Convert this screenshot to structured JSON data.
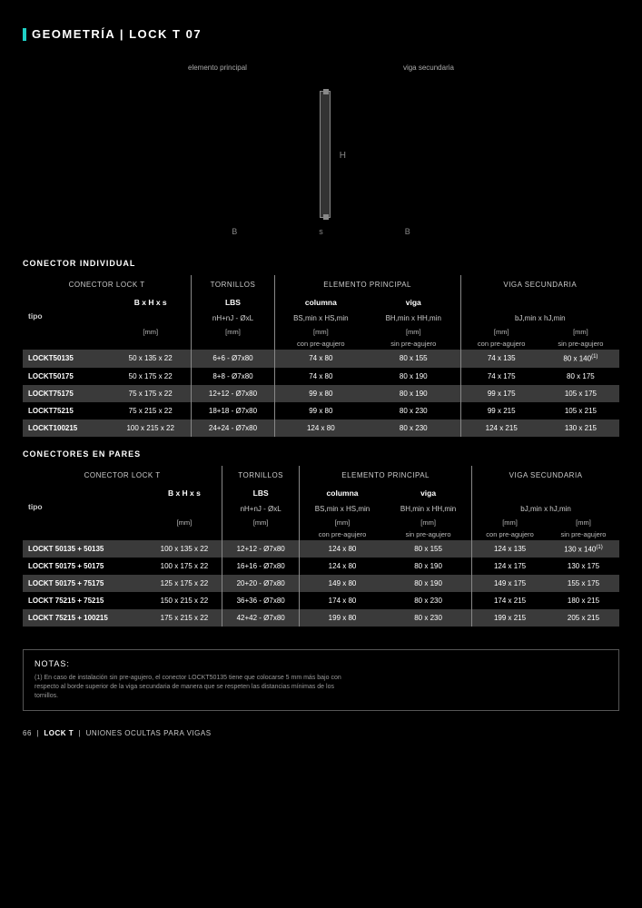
{
  "header": {
    "title": "GEOMETRÍA | LOCK T 07"
  },
  "diagram": {
    "left_label": "elemento\nprincipal",
    "right_label": "viga\nsecundaria",
    "H": "H",
    "B": "B",
    "s": "s"
  },
  "sec1": {
    "title": "CONECTOR INDIVIDUAL"
  },
  "sec2": {
    "title": "CONECTORES EN PARES"
  },
  "groups": {
    "g1": "CONECTOR LOCK T",
    "g2": "TORNILLOS",
    "g3": "ELEMENTO\nPRINCIPAL",
    "g4": "VIGA\nSECUNDARIA"
  },
  "sub": {
    "lbs": "LBS",
    "col": "columna",
    "viga": "viga",
    "tipo": "tipo",
    "bhs": "B x H x s",
    "nhn": "nH+nJ - ØxL",
    "bsmin": "BS,min x HS,min",
    "bhmin": "BH,min x HH,min",
    "bjmin": "bJ,min x hJ,min",
    "mm": "[mm]",
    "cpre": "con pre-agujero",
    "spre": "sin pre-agujero"
  },
  "t1": [
    {
      "a": "LOCKT50135",
      "b": "50 x 135 x 22",
      "c": "6+6 - Ø7x80",
      "d": "74 x 80",
      "e": "80 x 155",
      "f": "74 x 135",
      "g": "80 x 140(1)"
    },
    {
      "a": "LOCKT50175",
      "b": "50 x 175 x 22",
      "c": "8+8 - Ø7x80",
      "d": "74 x 80",
      "e": "80 x 190",
      "f": "74 x 175",
      "g": "80 x 175"
    },
    {
      "a": "LOCKT75175",
      "b": "75 x 175 x 22",
      "c": "12+12 - Ø7x80",
      "d": "99 x 80",
      "e": "80 x 190",
      "f": "99 x 175",
      "g": "105 x 175"
    },
    {
      "a": "LOCKT75215",
      "b": "75 x 215 x 22",
      "c": "18+18 - Ø7x80",
      "d": "99 x 80",
      "e": "80 x 230",
      "f": "99 x 215",
      "g": "105 x 215"
    },
    {
      "a": "LOCKT100215",
      "b": "100 x 215 x 22",
      "c": "24+24 - Ø7x80",
      "d": "124 x 80",
      "e": "80 x 230",
      "f": "124 x 215",
      "g": "130 x 215"
    }
  ],
  "t2": [
    {
      "a": "LOCKT 50135 + 50135",
      "b": "100 x 135 x 22",
      "c": "12+12 - Ø7x80",
      "d": "124 x 80",
      "e": "80 x 155",
      "f": "124 x 135",
      "g": "130 x 140(1)"
    },
    {
      "a": "LOCKT 50175 + 50175",
      "b": "100 x 175 x 22",
      "c": "16+16 - Ø7x80",
      "d": "124 x 80",
      "e": "80 x 190",
      "f": "124 x 175",
      "g": "130 x 175"
    },
    {
      "a": "LOCKT 50175 + 75175",
      "b": "125 x 175 x 22",
      "c": "20+20 - Ø7x80",
      "d": "149 x 80",
      "e": "80 x 190",
      "f": "149 x 175",
      "g": "155 x 175"
    },
    {
      "a": "LOCKT 75215 + 75215",
      "b": "150 x 215 x 22",
      "c": "36+36 - Ø7x80",
      "d": "174 x 80",
      "e": "80 x 230",
      "f": "174 x 215",
      "g": "180 x 215"
    },
    {
      "a": "LOCKT 75215 + 100215",
      "b": "175 x 215 x 22",
      "c": "42+42 - Ø7x80",
      "d": "199 x 80",
      "e": "80 x 230",
      "f": "199 x 215",
      "g": "205 x 215"
    }
  ],
  "notes": {
    "title": "NOTAS:",
    "body": "(1) En caso de instalación sin pre-agujero, el conector LOCKT50135 tiene que colocarse 5 mm más bajo con respecto al borde superior de la viga secundaria de manera que se respeten las distancias mínimas de los tornillos."
  },
  "footer": {
    "page": "66",
    "prod": "LOCK T",
    "cat": "UNIONES OCULTAS PARA VIGAS"
  }
}
